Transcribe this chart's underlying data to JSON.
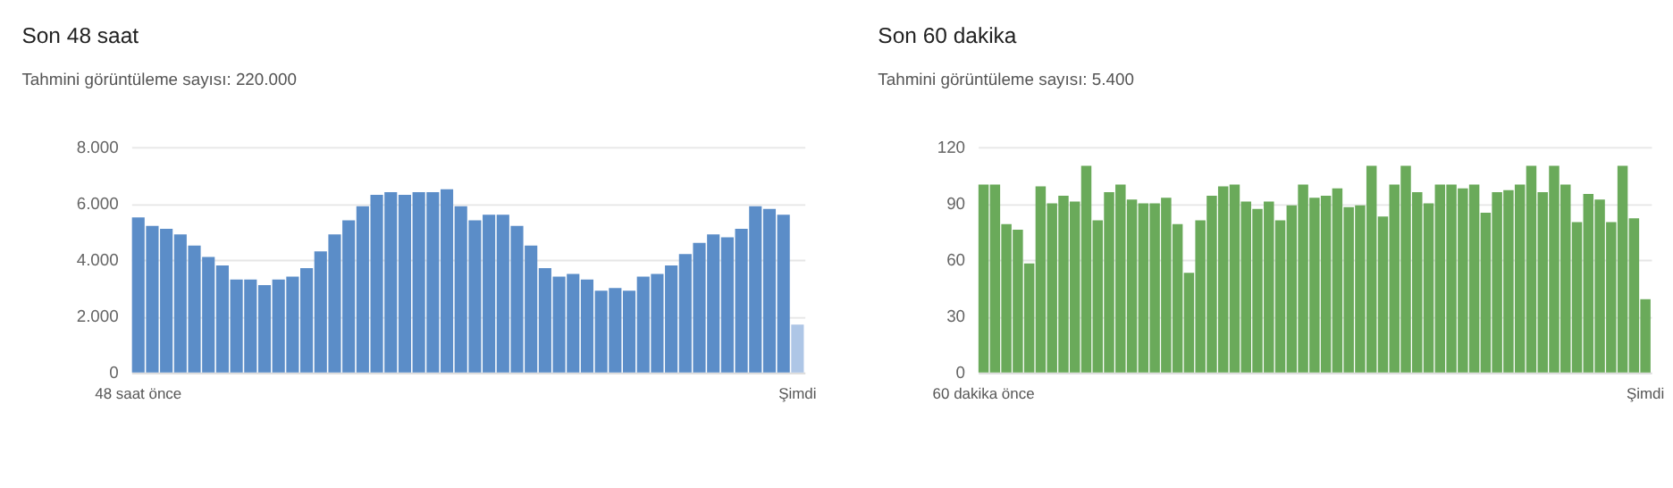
{
  "chart_data": [
    {
      "type": "bar",
      "title": "Son 48 saat",
      "subtitle": "Tahmini görüntüleme sayısı: 220.000",
      "categories": [
        "48 saat önce",
        null,
        null,
        null,
        null,
        null,
        null,
        null,
        null,
        null,
        null,
        null,
        null,
        null,
        null,
        null,
        null,
        null,
        null,
        null,
        null,
        null,
        null,
        null,
        null,
        null,
        null,
        null,
        null,
        null,
        null,
        null,
        null,
        null,
        null,
        null,
        null,
        null,
        null,
        null,
        null,
        null,
        null,
        null,
        null,
        null,
        null,
        "Şimdi"
      ],
      "values": [
        5500,
        5200,
        5100,
        4900,
        4500,
        4100,
        3800,
        3300,
        3300,
        3100,
        3300,
        3400,
        3700,
        4300,
        4900,
        5400,
        5900,
        6300,
        6400,
        6300,
        6400,
        6400,
        6500,
        5900,
        5400,
        5600,
        5600,
        5200,
        4500,
        3700,
        3400,
        3500,
        3300,
        2900,
        3000,
        2900,
        3400,
        3500,
        3800,
        4200,
        4600,
        4900,
        4800,
        5100,
        5900,
        5800,
        5600,
        1700
      ],
      "colors": [
        "#5b8dc8",
        "#5b8dc8",
        "#5b8dc8",
        "#5b8dc8",
        "#5b8dc8",
        "#5b8dc8",
        "#5b8dc8",
        "#5b8dc8",
        "#5b8dc8",
        "#5b8dc8",
        "#5b8dc8",
        "#5b8dc8",
        "#5b8dc8",
        "#5b8dc8",
        "#5b8dc8",
        "#5b8dc8",
        "#5b8dc8",
        "#5b8dc8",
        "#5b8dc8",
        "#5b8dc8",
        "#5b8dc8",
        "#5b8dc8",
        "#5b8dc8",
        "#5b8dc8",
        "#5b8dc8",
        "#5b8dc8",
        "#5b8dc8",
        "#5b8dc8",
        "#5b8dc8",
        "#5b8dc8",
        "#5b8dc8",
        "#5b8dc8",
        "#5b8dc8",
        "#5b8dc8",
        "#5b8dc8",
        "#5b8dc8",
        "#5b8dc8",
        "#5b8dc8",
        "#5b8dc8",
        "#5b8dc8",
        "#5b8dc8",
        "#5b8dc8",
        "#5b8dc8",
        "#5b8dc8",
        "#5b8dc8",
        "#5b8dc8",
        "#5b8dc8",
        "#aec6e6"
      ],
      "ylim": [
        0,
        8000
      ],
      "yticks": [
        0,
        {
          "value": 2000,
          "label": "2.000"
        },
        {
          "value": 4000,
          "label": "4.000"
        },
        {
          "value": 6000,
          "label": "6.000"
        },
        {
          "value": 8000,
          "label": "8.000"
        }
      ],
      "grid": "y"
    },
    {
      "type": "bar",
      "title": "Son 60 dakika",
      "subtitle": "Tahmini görüntüleme sayısı: 5.400",
      "categories": [
        "60 dakika önce",
        null,
        null,
        null,
        null,
        null,
        null,
        null,
        null,
        null,
        null,
        null,
        null,
        null,
        null,
        null,
        null,
        null,
        null,
        null,
        null,
        null,
        null,
        null,
        null,
        null,
        null,
        null,
        null,
        null,
        null,
        null,
        null,
        null,
        null,
        null,
        null,
        null,
        null,
        null,
        null,
        null,
        null,
        null,
        null,
        null,
        null,
        null,
        null,
        null,
        null,
        null,
        null,
        null,
        null,
        null,
        null,
        null,
        "Şimdi"
      ],
      "values": [
        100,
        100,
        79,
        76,
        58,
        99,
        90,
        94,
        91,
        110,
        81,
        96,
        100,
        92,
        90,
        90,
        93,
        79,
        53,
        81,
        94,
        99,
        100,
        91,
        87,
        91,
        81,
        89,
        100,
        93,
        94,
        98,
        88,
        89,
        110,
        83,
        100,
        110,
        96,
        90,
        100,
        100,
        98,
        100,
        85,
        96,
        97,
        100,
        110,
        96,
        110,
        100,
        80,
        95,
        92,
        80,
        110,
        82,
        39
      ],
      "color": "#6aaa5a",
      "ylim": [
        0,
        120
      ],
      "yticks": [
        0,
        30,
        60,
        90,
        120
      ],
      "grid": "y"
    }
  ]
}
